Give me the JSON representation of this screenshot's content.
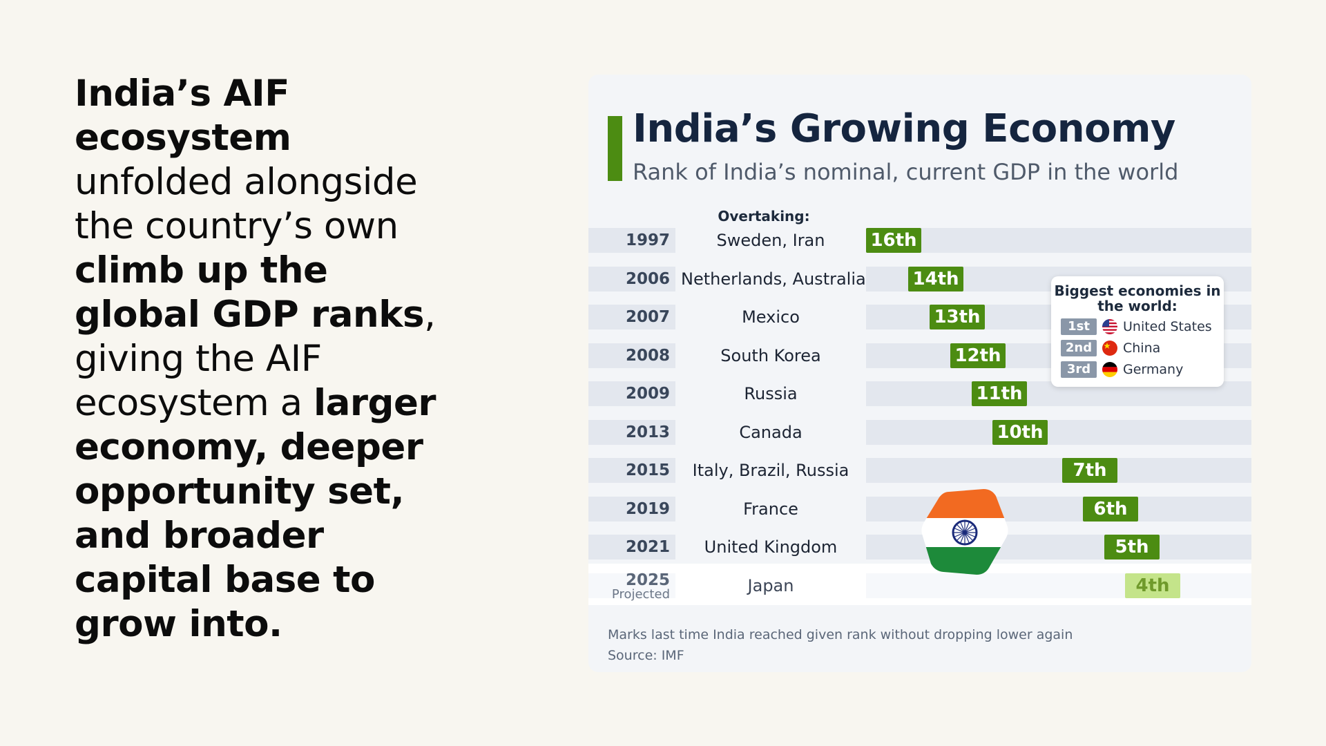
{
  "headline": {
    "segments": [
      {
        "text": "India’s AIF ecosystem ",
        "bold": true
      },
      {
        "text": "unfolded alongside the country’s own ",
        "bold": false
      },
      {
        "text": "climb up the global GDP ranks",
        "bold": true
      },
      {
        "text": ", giving the AIF ecosystem a ",
        "bold": false
      },
      {
        "text": "larger economy, deeper opportunity set, and broader capital base to grow into.",
        "bold": true
      }
    ]
  },
  "chart_data": {
    "type": "table",
    "title": "India’s Growing Economy",
    "subtitle": "Rank of India’s nominal, current GDP in the world",
    "column_header": "Overtaking:",
    "rows": [
      {
        "year": "1997",
        "overtaking": "Sweden, Iran",
        "rank_label": "16th",
        "rank": 16,
        "projected": false
      },
      {
        "year": "2006",
        "overtaking": "Netherlands, Australia",
        "rank_label": "14th",
        "rank": 14,
        "projected": false
      },
      {
        "year": "2007",
        "overtaking": "Mexico",
        "rank_label": "13th",
        "rank": 13,
        "projected": false
      },
      {
        "year": "2008",
        "overtaking": "South Korea",
        "rank_label": "12th",
        "rank": 12,
        "projected": false
      },
      {
        "year": "2009",
        "overtaking": "Russia",
        "rank_label": "11th",
        "rank": 11,
        "projected": false
      },
      {
        "year": "2013",
        "overtaking": "Canada",
        "rank_label": "10th",
        "rank": 10,
        "projected": false
      },
      {
        "year": "2015",
        "overtaking": "Italy, Brazil, Russia",
        "rank_label": "7th",
        "rank": 7,
        "projected": false
      },
      {
        "year": "2019",
        "overtaking": "France",
        "rank_label": "6th",
        "rank": 6,
        "projected": false
      },
      {
        "year": "2021",
        "overtaking": "United Kingdom",
        "rank_label": "5th",
        "rank": 5,
        "projected": false
      },
      {
        "year": "2025",
        "year_note": "Projected",
        "overtaking": "Japan",
        "rank_label": "4th",
        "rank": 4,
        "projected": true
      }
    ],
    "legend": {
      "title": "Biggest economies in the world:",
      "items": [
        {
          "rank": "1st",
          "country": "United States",
          "flag": "us-flag-icon"
        },
        {
          "rank": "2nd",
          "country": "China",
          "flag": "china-flag-icon"
        },
        {
          "rank": "3rd",
          "country": "Germany",
          "flag": "germany-flag-icon"
        }
      ]
    },
    "footnote": "Marks last time India reached given rank without dropping lower again",
    "source": "Source: IMF",
    "colors": {
      "rank": "#4c8c12",
      "rank_projected": "#c4e48a",
      "accent": "#4c8c12",
      "title": "#15253f"
    }
  }
}
